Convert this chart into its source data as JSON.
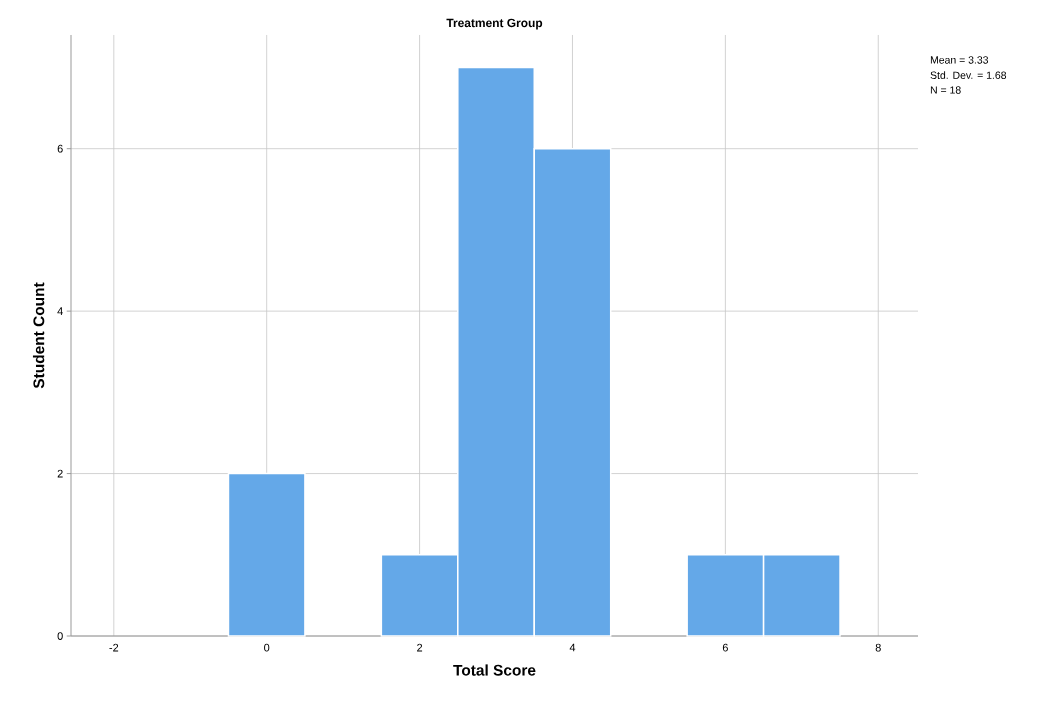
{
  "chart_data": {
    "type": "histogram",
    "title": "Treatment Group",
    "xlabel": "Total Score",
    "ylabel": "Student Count",
    "bins": [
      -0.5,
      0.5,
      1.5,
      2.5,
      3.5,
      4.5,
      5.5,
      6.5,
      7.5
    ],
    "values": [
      2,
      0,
      1,
      7,
      6,
      0,
      1,
      1
    ],
    "color": "#64a8e8",
    "xlim": [
      -2.56,
      8.52
    ],
    "ylim": [
      0,
      7.4
    ],
    "xticks": [
      -2,
      0,
      2,
      4,
      6,
      8
    ],
    "yticks": [
      0,
      2,
      4,
      6
    ],
    "grid": true,
    "annotations": [
      "Mean = 3.33",
      "Std. Dev. = 1.68",
      "N = 18"
    ]
  }
}
